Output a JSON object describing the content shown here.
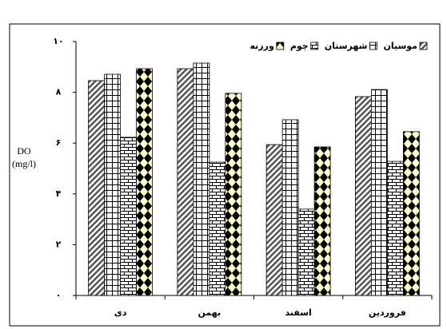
{
  "chart_data": {
    "type": "bar",
    "y_label": [
      "DO",
      "(mg/l)"
    ],
    "categories": [
      "دی",
      "بهمن",
      "اسفند",
      "فروردین"
    ],
    "series": [
      {
        "name": "موسیان",
        "color": "#555555",
        "pattern": "diagonal",
        "values": [
          8.46,
          8.93,
          5.94,
          7.83
        ]
      },
      {
        "name": "شهرستان",
        "color": "#ffffff",
        "pattern": "grid",
        "values": [
          8.71,
          9.15,
          6.92,
          8.11
        ]
      },
      {
        "name": "چوم",
        "color": "#ffffff",
        "pattern": "brick",
        "values": [
          6.23,
          5.25,
          3.4,
          5.28
        ]
      },
      {
        "name": "ورزنه",
        "color": "#ffffcc",
        "pattern": "diamond",
        "values": [
          8.93,
          7.96,
          5.85,
          6.45
        ]
      }
    ],
    "ylim": [
      0,
      10
    ],
    "yticks": [
      {
        "value": 0,
        "label": "٠"
      },
      {
        "value": 2,
        "label": "۲"
      },
      {
        "value": 4,
        "label": "۴"
      },
      {
        "value": 6,
        "label": "۶"
      },
      {
        "value": 8,
        "label": "۸"
      },
      {
        "value": 10,
        "label": "۱۰"
      }
    ],
    "grid": false,
    "legend": "upper right"
  }
}
